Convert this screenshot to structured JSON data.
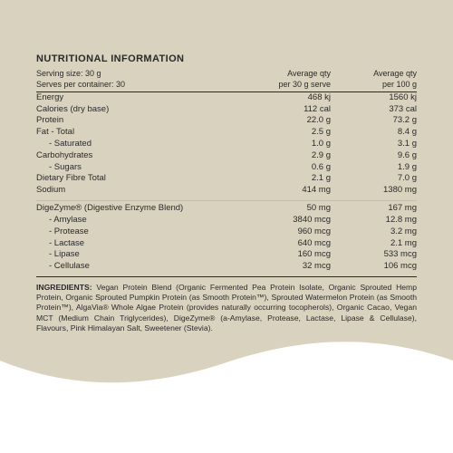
{
  "colors": {
    "bg_beige": "#d8d2bf",
    "bg_white": "#ffffff",
    "text": "#2a2a2a",
    "sep_light": "#c0bfb0",
    "sep_dark": "#2a2a2a"
  },
  "title": "NUTRITIONAL INFORMATION",
  "serving": {
    "size_label": "Serving size: 30 g",
    "servings_label": "Serves per container: 30"
  },
  "column_headers": {
    "per_serve_line1": "Average qty",
    "per_serve_line2": "per 30 g serve",
    "per_100g_line1": "Average qty",
    "per_100g_line2": "per 100 g"
  },
  "main_rows": [
    {
      "label": "Energy",
      "indent": 0,
      "serve": "468 kj",
      "per100": "1560 kj"
    },
    {
      "label": "Calories (dry base)",
      "indent": 0,
      "serve": "112 cal",
      "per100": "373 cal"
    },
    {
      "label": "Protein",
      "indent": 0,
      "serve": "22.0 g",
      "per100": "73.2 g"
    },
    {
      "label": "Fat  - Total",
      "indent": 0,
      "serve": "2.5 g",
      "per100": "8.4 g"
    },
    {
      "label": "- Saturated",
      "indent": 1,
      "serve": "1.0 g",
      "per100": "3.1 g"
    },
    {
      "label": "Carbohydrates",
      "indent": 0,
      "serve": "2.9 g",
      "per100": "9.6 g"
    },
    {
      "label": "- Sugars",
      "indent": 1,
      "serve": "0.6 g",
      "per100": "1.9 g"
    },
    {
      "label": "Dietary Fibre Total",
      "indent": 0,
      "serve": "2.1 g",
      "per100": "7.0 g"
    },
    {
      "label": "Sodium",
      "indent": 0,
      "serve": "414 mg",
      "per100": "1380 mg"
    }
  ],
  "enzyme_header": {
    "label": "DigeZyme®  (Digestive Enzyme Blend)",
    "serve": "50 mg",
    "per100": "167 mg"
  },
  "enzyme_rows": [
    {
      "label": "- Amylase",
      "indent": 1,
      "serve": "3840 mcg",
      "per100": "12.8 mg"
    },
    {
      "label": "- Protease",
      "indent": 1,
      "serve": "960 mcg",
      "per100": "3.2 mg"
    },
    {
      "label": "- Lactase",
      "indent": 1,
      "serve": "640 mcg",
      "per100": "2.1 mg"
    },
    {
      "label": "- Lipase",
      "indent": 1,
      "serve": "160 mcg",
      "per100": "533  mcg"
    },
    {
      "label": "- Cellulase",
      "indent": 1,
      "serve": "32  mcg",
      "per100": "106  mcg"
    }
  ],
  "ingredients_lead": "INGREDIENTS:",
  "ingredients_body": " Vegan Protein Blend (Organic Fermented Pea Protein Isolate, Organic Sprouted Hemp Protein, Organic Sprouted Pumpkin Protein (as Smooth Protein™), Sprouted Watermelon Protein (as Smooth Protein™), AlgaVia® Whole Algae Protein (provides naturally occurring tocopherols), Organic Cacao, Vegan MCT (Medium Chain Triglycerides), DigeZyme® (a-Amylase, Protease, Lactase, Lipase & Cellulase), Flavours, Pink Himalayan Salt, Sweetener (Stevia)."
}
